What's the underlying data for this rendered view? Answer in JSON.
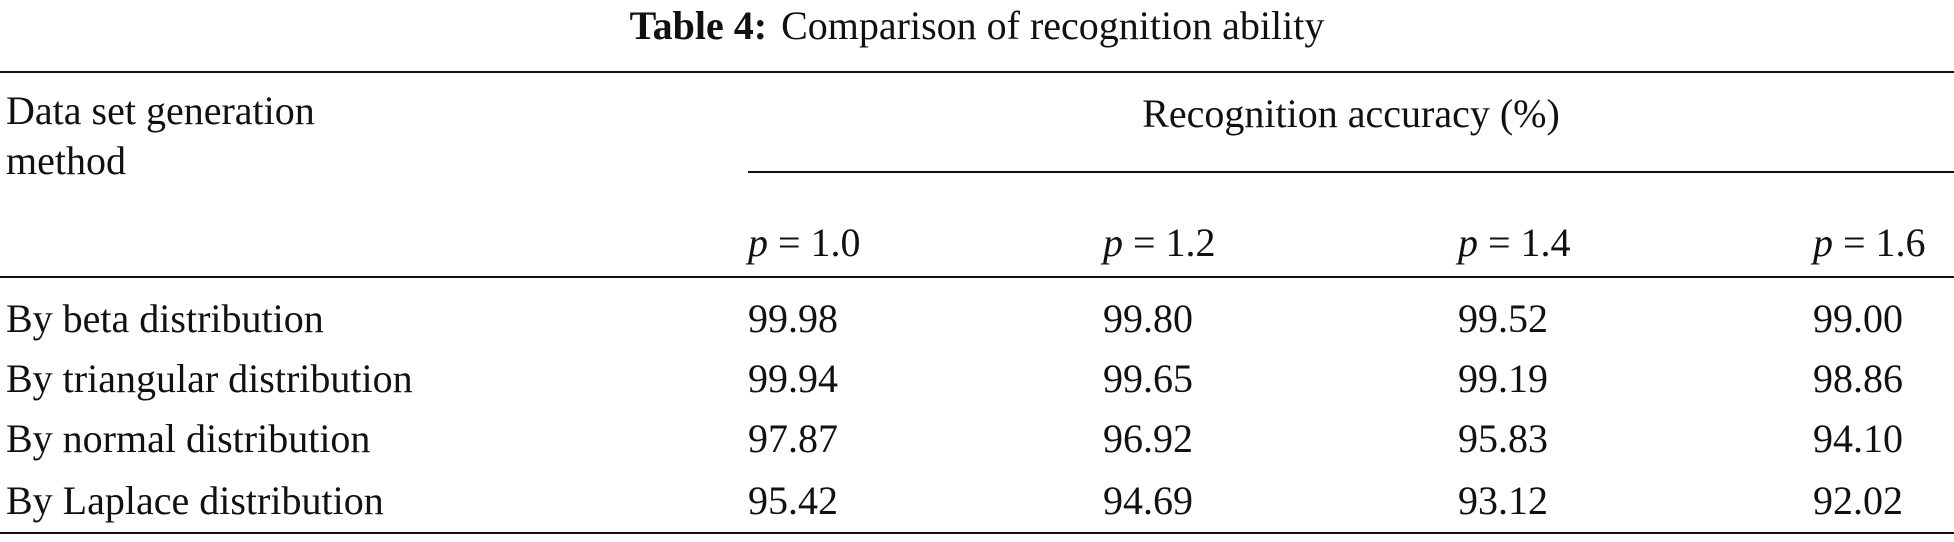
{
  "caption": {
    "label": "Table 4:",
    "text": "Comparison of recognition ability"
  },
  "table": {
    "row_header": "Data set generation method",
    "group_header": "Recognition accuracy (%)",
    "columns": [
      {
        "symbol": "p",
        "value": "= 1.0"
      },
      {
        "symbol": "p",
        "value": "= 1.2"
      },
      {
        "symbol": "p",
        "value": "= 1.4"
      },
      {
        "symbol": "p",
        "value": "= 1.6"
      }
    ],
    "rows": [
      [
        "By beta distribution",
        "99.98",
        "99.80",
        "99.52",
        "99.00"
      ],
      [
        "By triangular distribution",
        "99.94",
        "99.65",
        "99.19",
        "98.86"
      ],
      [
        "By normal distribution",
        "97.87",
        "96.92",
        "95.83",
        "94.10"
      ],
      [
        "By Laplace distribution",
        "95.42",
        "94.69",
        "93.12",
        "92.02"
      ]
    ]
  }
}
